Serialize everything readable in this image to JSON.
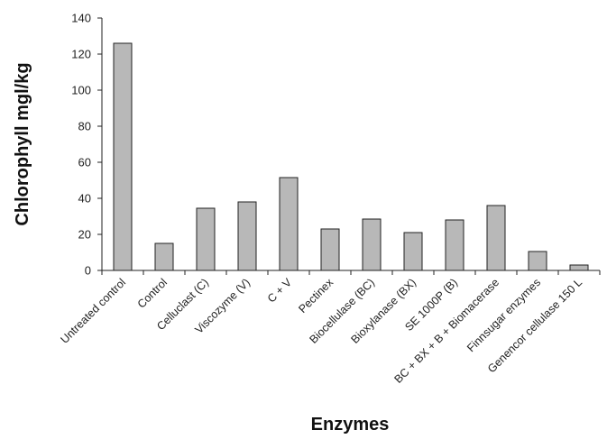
{
  "chart_data": {
    "type": "bar",
    "title": "",
    "xlabel": "Enzymes",
    "ylabel": "Chlorophyll mgl/kg",
    "ylim": [
      0,
      140
    ],
    "yticks": [
      0,
      20,
      40,
      60,
      80,
      100,
      120,
      140
    ],
    "grid": false,
    "legend": "none",
    "bar_color": "#b8b8b8",
    "categories": [
      "Untreated control",
      "Control",
      "Celluclast (C)",
      "Viscozyme (V)",
      "C + V",
      "Pectinex",
      "Biocellulase (BC)",
      "Bioxylanase (BX)",
      "SE 1000P (B)",
      "BC + BX + B + Biomacerase",
      "Finnsugar enzymes",
      "Genencor cellulase 150 L"
    ],
    "values": [
      126,
      15,
      34.5,
      38,
      51.5,
      23,
      28.5,
      21,
      28,
      36,
      10.5,
      3
    ]
  }
}
